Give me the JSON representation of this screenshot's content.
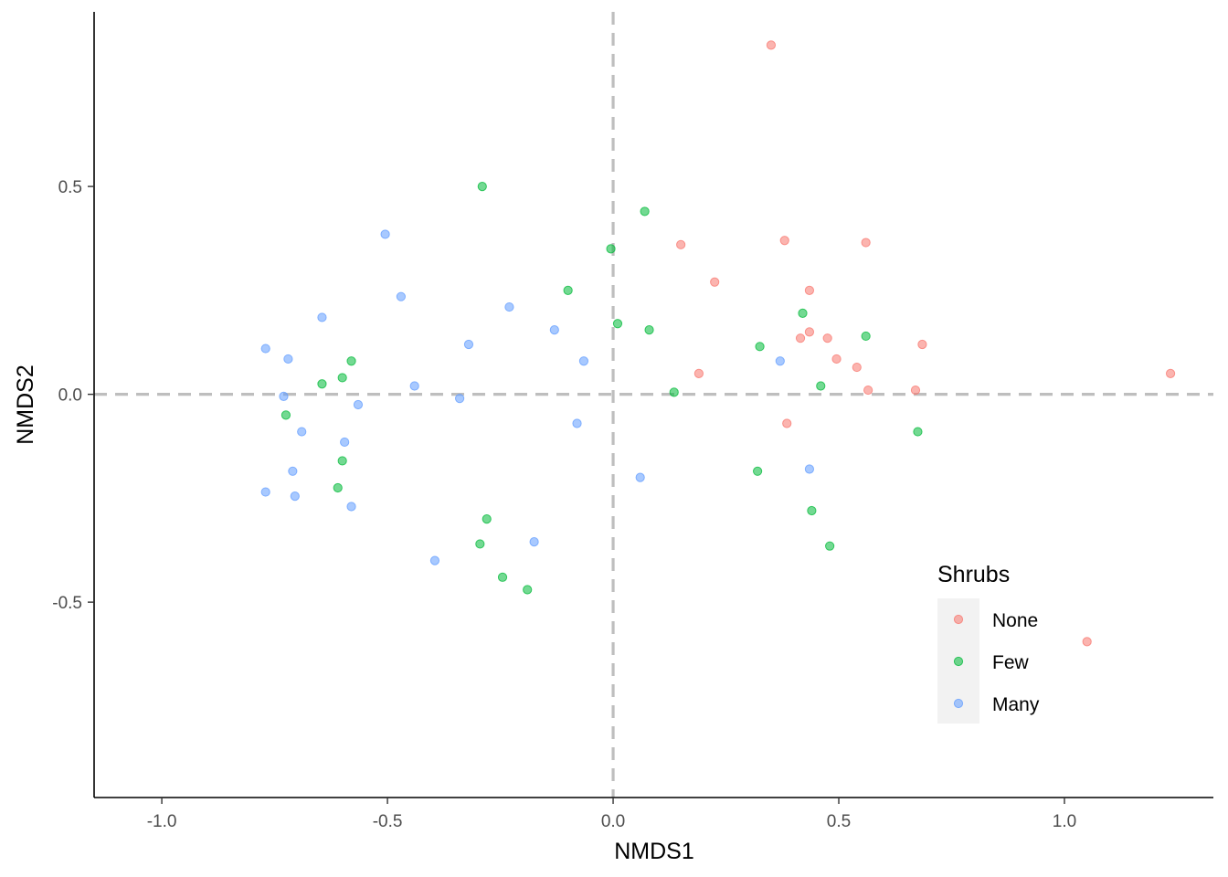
{
  "chart_data": {
    "type": "scatter",
    "xlabel": "NMDS1",
    "ylabel": "NMDS2",
    "xlim": [
      -1.15,
      1.33
    ],
    "ylim": [
      -0.97,
      0.92
    ],
    "x_ticks": [
      -1.0,
      -0.5,
      0.0,
      0.5,
      1.0
    ],
    "x_tick_labels": [
      "-1.0",
      "-0.5",
      "0.0",
      "0.5",
      "1.0"
    ],
    "y_ticks": [
      -0.5,
      0.0,
      0.5
    ],
    "y_tick_labels": [
      "-0.5",
      "0.0",
      "0.5"
    ],
    "reference_lines": {
      "x": 0,
      "y": 0,
      "style": "dashed",
      "color": "#bebebe"
    },
    "grid": false,
    "legend": {
      "title": "Shrubs",
      "placement": "bottom-right inside"
    },
    "series": [
      {
        "name": "None",
        "color": "#F8766D",
        "points": [
          [
            0.35,
            0.84
          ],
          [
            0.15,
            0.36
          ],
          [
            0.38,
            0.37
          ],
          [
            0.56,
            0.365
          ],
          [
            0.225,
            0.27
          ],
          [
            0.435,
            0.25
          ],
          [
            0.435,
            0.15
          ],
          [
            0.415,
            0.135
          ],
          [
            0.475,
            0.135
          ],
          [
            0.685,
            0.12
          ],
          [
            0.495,
            0.085
          ],
          [
            0.54,
            0.065
          ],
          [
            0.19,
            0.05
          ],
          [
            1.235,
            0.05
          ],
          [
            0.565,
            0.01
          ],
          [
            0.67,
            0.01
          ],
          [
            0.385,
            -0.07
          ],
          [
            1.05,
            -0.595
          ]
        ]
      },
      {
        "name": "Few",
        "color": "#00BA38",
        "points": [
          [
            -0.29,
            0.5
          ],
          [
            0.07,
            0.44
          ],
          [
            -0.005,
            0.35
          ],
          [
            -0.1,
            0.25
          ],
          [
            0.01,
            0.17
          ],
          [
            0.08,
            0.155
          ],
          [
            0.42,
            0.195
          ],
          [
            0.56,
            0.14
          ],
          [
            0.325,
            0.115
          ],
          [
            -0.58,
            0.08
          ],
          [
            -0.6,
            0.04
          ],
          [
            -0.645,
            0.025
          ],
          [
            0.46,
            0.02
          ],
          [
            0.135,
            0.005
          ],
          [
            -0.725,
            -0.05
          ],
          [
            0.675,
            -0.09
          ],
          [
            -0.6,
            -0.16
          ],
          [
            0.32,
            -0.185
          ],
          [
            -0.61,
            -0.225
          ],
          [
            0.44,
            -0.28
          ],
          [
            -0.28,
            -0.3
          ],
          [
            -0.295,
            -0.36
          ],
          [
            0.48,
            -0.365
          ],
          [
            -0.245,
            -0.44
          ],
          [
            -0.19,
            -0.47
          ]
        ]
      },
      {
        "name": "Many",
        "color": "#619CFF",
        "points": [
          [
            -0.505,
            0.385
          ],
          [
            -0.47,
            0.235
          ],
          [
            -0.23,
            0.21
          ],
          [
            -0.645,
            0.185
          ],
          [
            -0.13,
            0.155
          ],
          [
            -0.32,
            0.12
          ],
          [
            -0.77,
            0.11
          ],
          [
            -0.72,
            0.085
          ],
          [
            -0.065,
            0.08
          ],
          [
            0.37,
            0.08
          ],
          [
            -0.44,
            0.02
          ],
          [
            -0.73,
            -0.005
          ],
          [
            -0.34,
            -0.01
          ],
          [
            -0.565,
            -0.025
          ],
          [
            -0.08,
            -0.07
          ],
          [
            -0.69,
            -0.09
          ],
          [
            -0.595,
            -0.115
          ],
          [
            -0.71,
            -0.185
          ],
          [
            0.06,
            -0.2
          ],
          [
            0.435,
            -0.18
          ],
          [
            -0.77,
            -0.235
          ],
          [
            -0.705,
            -0.245
          ],
          [
            -0.58,
            -0.27
          ],
          [
            -0.175,
            -0.355
          ],
          [
            -0.395,
            -0.4
          ]
        ]
      }
    ]
  }
}
